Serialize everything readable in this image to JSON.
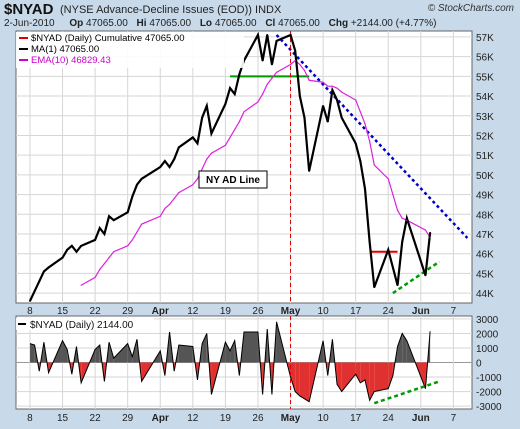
{
  "header": {
    "symbol": "$NYAD",
    "description": "(NYSE Advance-Decline Issues (EOD))  INDX",
    "brand": "© StockCharts.com",
    "date": "2-Jun-2010",
    "open_label": "Op",
    "open": "47065.00",
    "high_label": "Hi",
    "high": "47065.00",
    "low_label": "Lo",
    "low": "47065.00",
    "close_label": "Cl",
    "close": "47065.00",
    "change_label": "Chg",
    "change": "+2144.00 (+4.77%)"
  },
  "legend": [
    {
      "text": "$NYAD (Daily) Cumulative 47065.00",
      "color": "#000000",
      "swatch": "#dd0000"
    },
    {
      "text": "MA(1) 47065.00",
      "color": "#000000",
      "swatch": "#000000"
    },
    {
      "text": "EMA(10) 46829.43",
      "color": "#cc00cc",
      "swatch": "#cc00cc"
    }
  ],
  "annotation": "NY AD Line",
  "sub_legend": "$NYAD (Daily) 2144.00",
  "colors": {
    "background": "#c8d9ea",
    "line": "#000000",
    "ema": "#dd22dd",
    "up_fill": "#555555",
    "down_fill": "#e03030",
    "resistance": "#0000cc",
    "support": "#009900",
    "marker": "#dd0000"
  },
  "chart_data": [
    {
      "type": "line",
      "title": "$NYAD (Daily) Cumulative 47065.00",
      "x": [
        "2010-03-08",
        "2010-03-09",
        "2010-03-10",
        "2010-03-11",
        "2010-03-12",
        "2010-03-15",
        "2010-03-16",
        "2010-03-17",
        "2010-03-18",
        "2010-03-19",
        "2010-03-22",
        "2010-03-23",
        "2010-03-24",
        "2010-03-25",
        "2010-03-26",
        "2010-03-29",
        "2010-03-30",
        "2010-03-31",
        "2010-04-01",
        "2010-04-05",
        "2010-04-06",
        "2010-04-07",
        "2010-04-08",
        "2010-04-09",
        "2010-04-12",
        "2010-04-13",
        "2010-04-14",
        "2010-04-15",
        "2010-04-16",
        "2010-04-19",
        "2010-04-20",
        "2010-04-21",
        "2010-04-22",
        "2010-04-23",
        "2010-04-26",
        "2010-04-27",
        "2010-04-28",
        "2010-04-29",
        "2010-04-30",
        "2010-05-03",
        "2010-05-04",
        "2010-05-05",
        "2010-05-06",
        "2010-05-07",
        "2010-05-10",
        "2010-05-11",
        "2010-05-12",
        "2010-05-13",
        "2010-05-14",
        "2010-05-17",
        "2010-05-18",
        "2010-05-19",
        "2010-05-20",
        "2010-05-21",
        "2010-05-24",
        "2010-05-25",
        "2010-05-26",
        "2010-05-27",
        "2010-05-28",
        "2010-06-01",
        "2010-06-02"
      ],
      "series": [
        {
          "name": "MA(1)",
          "values": [
            43600,
            44100,
            44600,
            45100,
            45300,
            45800,
            46200,
            46400,
            46100,
            46400,
            46700,
            47300,
            47000,
            47900,
            47700,
            48100,
            48900,
            49500,
            49800,
            50400,
            50700,
            50400,
            50800,
            51400,
            51900,
            51600,
            52900,
            53500,
            52100,
            53600,
            54400,
            54100,
            55100,
            55800,
            57100,
            55800,
            57100,
            55600,
            56800,
            57100,
            56300,
            54000,
            52900,
            50200,
            53500,
            52700,
            54300,
            53800,
            52900,
            51600,
            50700,
            49300,
            46600,
            44300,
            46200,
            45300,
            44400,
            46600,
            47800,
            44900,
            47065
          ]
        },
        {
          "name": "EMA(10)",
          "values": [
            null,
            null,
            null,
            null,
            null,
            null,
            null,
            null,
            null,
            44400,
            44800,
            45200,
            45500,
            45800,
            46100,
            46400,
            46700,
            47100,
            47500,
            47900,
            48300,
            48500,
            48800,
            49100,
            49500,
            49800,
            50300,
            50800,
            51100,
            51500,
            51900,
            52300,
            52700,
            53200,
            53700,
            54100,
            54600,
            54900,
            55200,
            55600,
            55800,
            55600,
            55300,
            54800,
            54700,
            54500,
            54500,
            54400,
            54200,
            53800,
            53200,
            52600,
            51700,
            50500,
            49800,
            49000,
            48200,
            47800,
            47700,
            47200,
            46829.43
          ]
        }
      ],
      "ylim": [
        43500,
        57300
      ],
      "y_ticks": [
        44000,
        45000,
        46000,
        47000,
        48000,
        49000,
        50000,
        51000,
        52000,
        53000,
        54000,
        55000,
        56000,
        57000
      ],
      "y_tick_labels": [
        "44K",
        "45K",
        "46K",
        "47K",
        "48K",
        "49K",
        "50K",
        "51K",
        "52K",
        "53K",
        "54K",
        "55K",
        "56K",
        "57K"
      ],
      "x_tick_labels": [
        "8",
        "15",
        "22",
        "29",
        "Apr",
        "12",
        "19",
        "26",
        "May",
        "10",
        "17",
        "24",
        "Jun",
        "7"
      ],
      "x_tick_dates": [
        "2010-03-08",
        "2010-03-15",
        "2010-03-22",
        "2010-03-29",
        "2010-04-05",
        "2010-04-12",
        "2010-04-19",
        "2010-04-26",
        "2010-05-03",
        "2010-05-10",
        "2010-05-17",
        "2010-05-24",
        "2010-05-31",
        "2010-06-07"
      ],
      "legend_position": "top-left",
      "grid": true,
      "overlays": [
        {
          "kind": "resistance",
          "points": [
            [
              "2010-04-30",
              57100
            ],
            [
              "2010-06-10",
              46800
            ]
          ]
        },
        {
          "kind": "support_uptrend",
          "points": [
            [
              "2010-05-25",
              44000
            ],
            [
              "2010-06-04",
              45600
            ]
          ]
        },
        {
          "kind": "support_level",
          "points": [
            [
              "2010-04-20",
              55000
            ],
            [
              "2010-05-07",
              55000
            ]
          ]
        },
        {
          "kind": "marker_level",
          "points": [
            [
              "2010-05-20",
              46100
            ],
            [
              "2010-05-26",
              46100
            ]
          ]
        },
        {
          "kind": "vertical_marker",
          "x": "2010-05-03"
        }
      ]
    },
    {
      "type": "area",
      "title": "$NYAD (Daily) 2144.00",
      "x": [
        "2010-03-08",
        "2010-03-09",
        "2010-03-10",
        "2010-03-11",
        "2010-03-12",
        "2010-03-15",
        "2010-03-16",
        "2010-03-17",
        "2010-03-18",
        "2010-03-19",
        "2010-03-22",
        "2010-03-23",
        "2010-03-24",
        "2010-03-25",
        "2010-03-26",
        "2010-03-29",
        "2010-03-30",
        "2010-03-31",
        "2010-04-01",
        "2010-04-05",
        "2010-04-06",
        "2010-04-07",
        "2010-04-08",
        "2010-04-09",
        "2010-04-12",
        "2010-04-13",
        "2010-04-14",
        "2010-04-15",
        "2010-04-16",
        "2010-04-19",
        "2010-04-20",
        "2010-04-21",
        "2010-04-22",
        "2010-04-23",
        "2010-04-26",
        "2010-04-27",
        "2010-04-28",
        "2010-04-29",
        "2010-04-30",
        "2010-05-03",
        "2010-05-04",
        "2010-05-05",
        "2010-05-06",
        "2010-05-07",
        "2010-05-10",
        "2010-05-11",
        "2010-05-12",
        "2010-05-13",
        "2010-05-14",
        "2010-05-17",
        "2010-05-18",
        "2010-05-19",
        "2010-05-20",
        "2010-05-21",
        "2010-05-24",
        "2010-05-25",
        "2010-05-26",
        "2010-05-27",
        "2010-05-28",
        "2010-06-01",
        "2010-06-02"
      ],
      "values": [
        1300,
        1200,
        -600,
        1400,
        -700,
        1500,
        900,
        -800,
        1100,
        -1400,
        900,
        1200,
        -1300,
        1400,
        300,
        1300,
        400,
        1600,
        -1300,
        800,
        -900,
        2100,
        -600,
        1200,
        1100,
        -1200,
        1300,
        2000,
        -2200,
        1400,
        800,
        1500,
        -900,
        2100,
        2100,
        -2200,
        2300,
        -2200,
        2800,
        -1000,
        -2000,
        -2300,
        -2500,
        -2700,
        1500,
        -900,
        1600,
        -1500,
        -2000,
        -800,
        -1400,
        -1200,
        -2600,
        -2000,
        -1800,
        -900,
        1100,
        2000,
        1500,
        -1800,
        2144
      ],
      "ylim": [
        -3200,
        3200
      ],
      "y_ticks": [
        -3000,
        -2000,
        -1000,
        0,
        1000,
        2000,
        3000
      ],
      "y_tick_labels": [
        "-3000",
        "-2000",
        "-1000",
        "0",
        "1000",
        "2000",
        "3000"
      ],
      "x_tick_labels": [
        "8",
        "15",
        "22",
        "29",
        "Apr",
        "12",
        "19",
        "26",
        "May",
        "10",
        "17",
        "24",
        "Jun",
        "7"
      ],
      "x_tick_dates": [
        "2010-03-08",
        "2010-03-15",
        "2010-03-22",
        "2010-03-29",
        "2010-04-05",
        "2010-04-12",
        "2010-04-19",
        "2010-04-26",
        "2010-05-03",
        "2010-05-10",
        "2010-05-17",
        "2010-05-24",
        "2010-05-31",
        "2010-06-07"
      ],
      "grid": true,
      "overlays": [
        {
          "kind": "trend",
          "points": [
            [
              "2010-05-21",
              -2800
            ],
            [
              "2010-06-04",
              -1300
            ]
          ]
        },
        {
          "kind": "vertical_marker",
          "x": "2010-05-03"
        }
      ]
    }
  ]
}
